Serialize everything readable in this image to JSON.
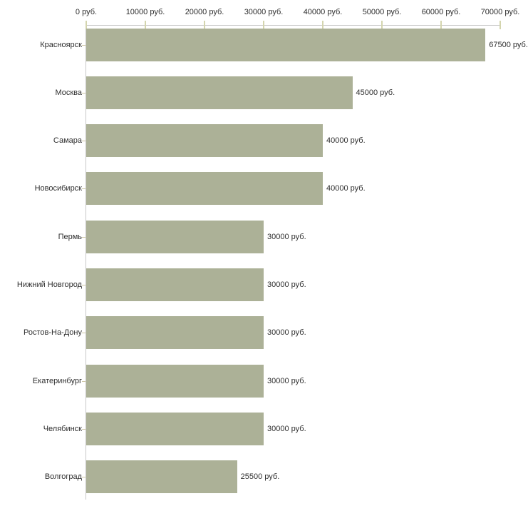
{
  "chart_data": {
    "type": "bar",
    "orientation": "horizontal",
    "categories": [
      "Красноярск",
      "Москва",
      "Самара",
      "Новосибирск",
      "Пермь",
      "Нижний Новгород",
      "Ростов-На-Дону",
      "Екатеринбург",
      "Челябинск",
      "Волгоград"
    ],
    "values": [
      67500,
      45000,
      40000,
      40000,
      30000,
      30000,
      30000,
      30000,
      30000,
      25500
    ],
    "value_labels": [
      "67500 руб.",
      "45000 руб.",
      "40000 руб.",
      "40000 руб.",
      "30000 руб.",
      "30000 руб.",
      "30000 руб.",
      "30000 руб.",
      "30000 руб.",
      "25500 руб."
    ],
    "x_ticks": [
      0,
      10000,
      20000,
      30000,
      40000,
      50000,
      60000,
      70000
    ],
    "x_tick_labels": [
      "0 руб.",
      "10000 руб.",
      "20000 руб.",
      "30000 руб.",
      "40000 руб.",
      "50000 руб.",
      "60000 руб.",
      "70000 руб."
    ],
    "xlim": [
      0,
      70000
    ],
    "axis_position": "top",
    "grid": false,
    "legend": false,
    "colors": {
      "bar": "#acb197",
      "axis_line": "#c8c8c8",
      "tick": "#d4d5ae",
      "category_tick": "#cdc6a4",
      "text": "#2e2e2e",
      "background": "#ffffff"
    }
  }
}
